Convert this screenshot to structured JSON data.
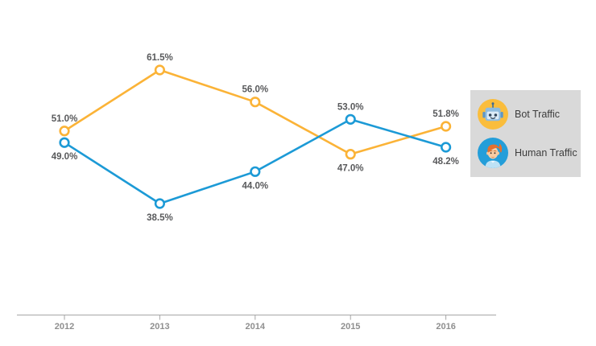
{
  "chart_data": {
    "type": "line",
    "categories": [
      "2012",
      "2013",
      "2014",
      "2015",
      "2016"
    ],
    "series": [
      {
        "name": "Bot Traffic",
        "color": "#FBB337",
        "marker": "circle-open",
        "icon": "robot",
        "values": [
          51.0,
          61.5,
          56.0,
          47.0,
          51.8
        ]
      },
      {
        "name": "Human Traffic",
        "color": "#1C9AD6",
        "marker": "circle-open",
        "icon": "person",
        "values": [
          49.0,
          38.5,
          44.0,
          53.0,
          48.2
        ]
      }
    ],
    "title": "",
    "xlabel": "",
    "ylabel": "",
    "value_suffix": "%",
    "data_labels": true,
    "grid": false,
    "y_axis_visible": false,
    "legend_position": "right",
    "style": {
      "data_label_color": "#58595B",
      "axis_color": "#A6A6A6",
      "axis_label_color": "#8F8F8F",
      "legend_background": "#D9D9D9"
    }
  }
}
